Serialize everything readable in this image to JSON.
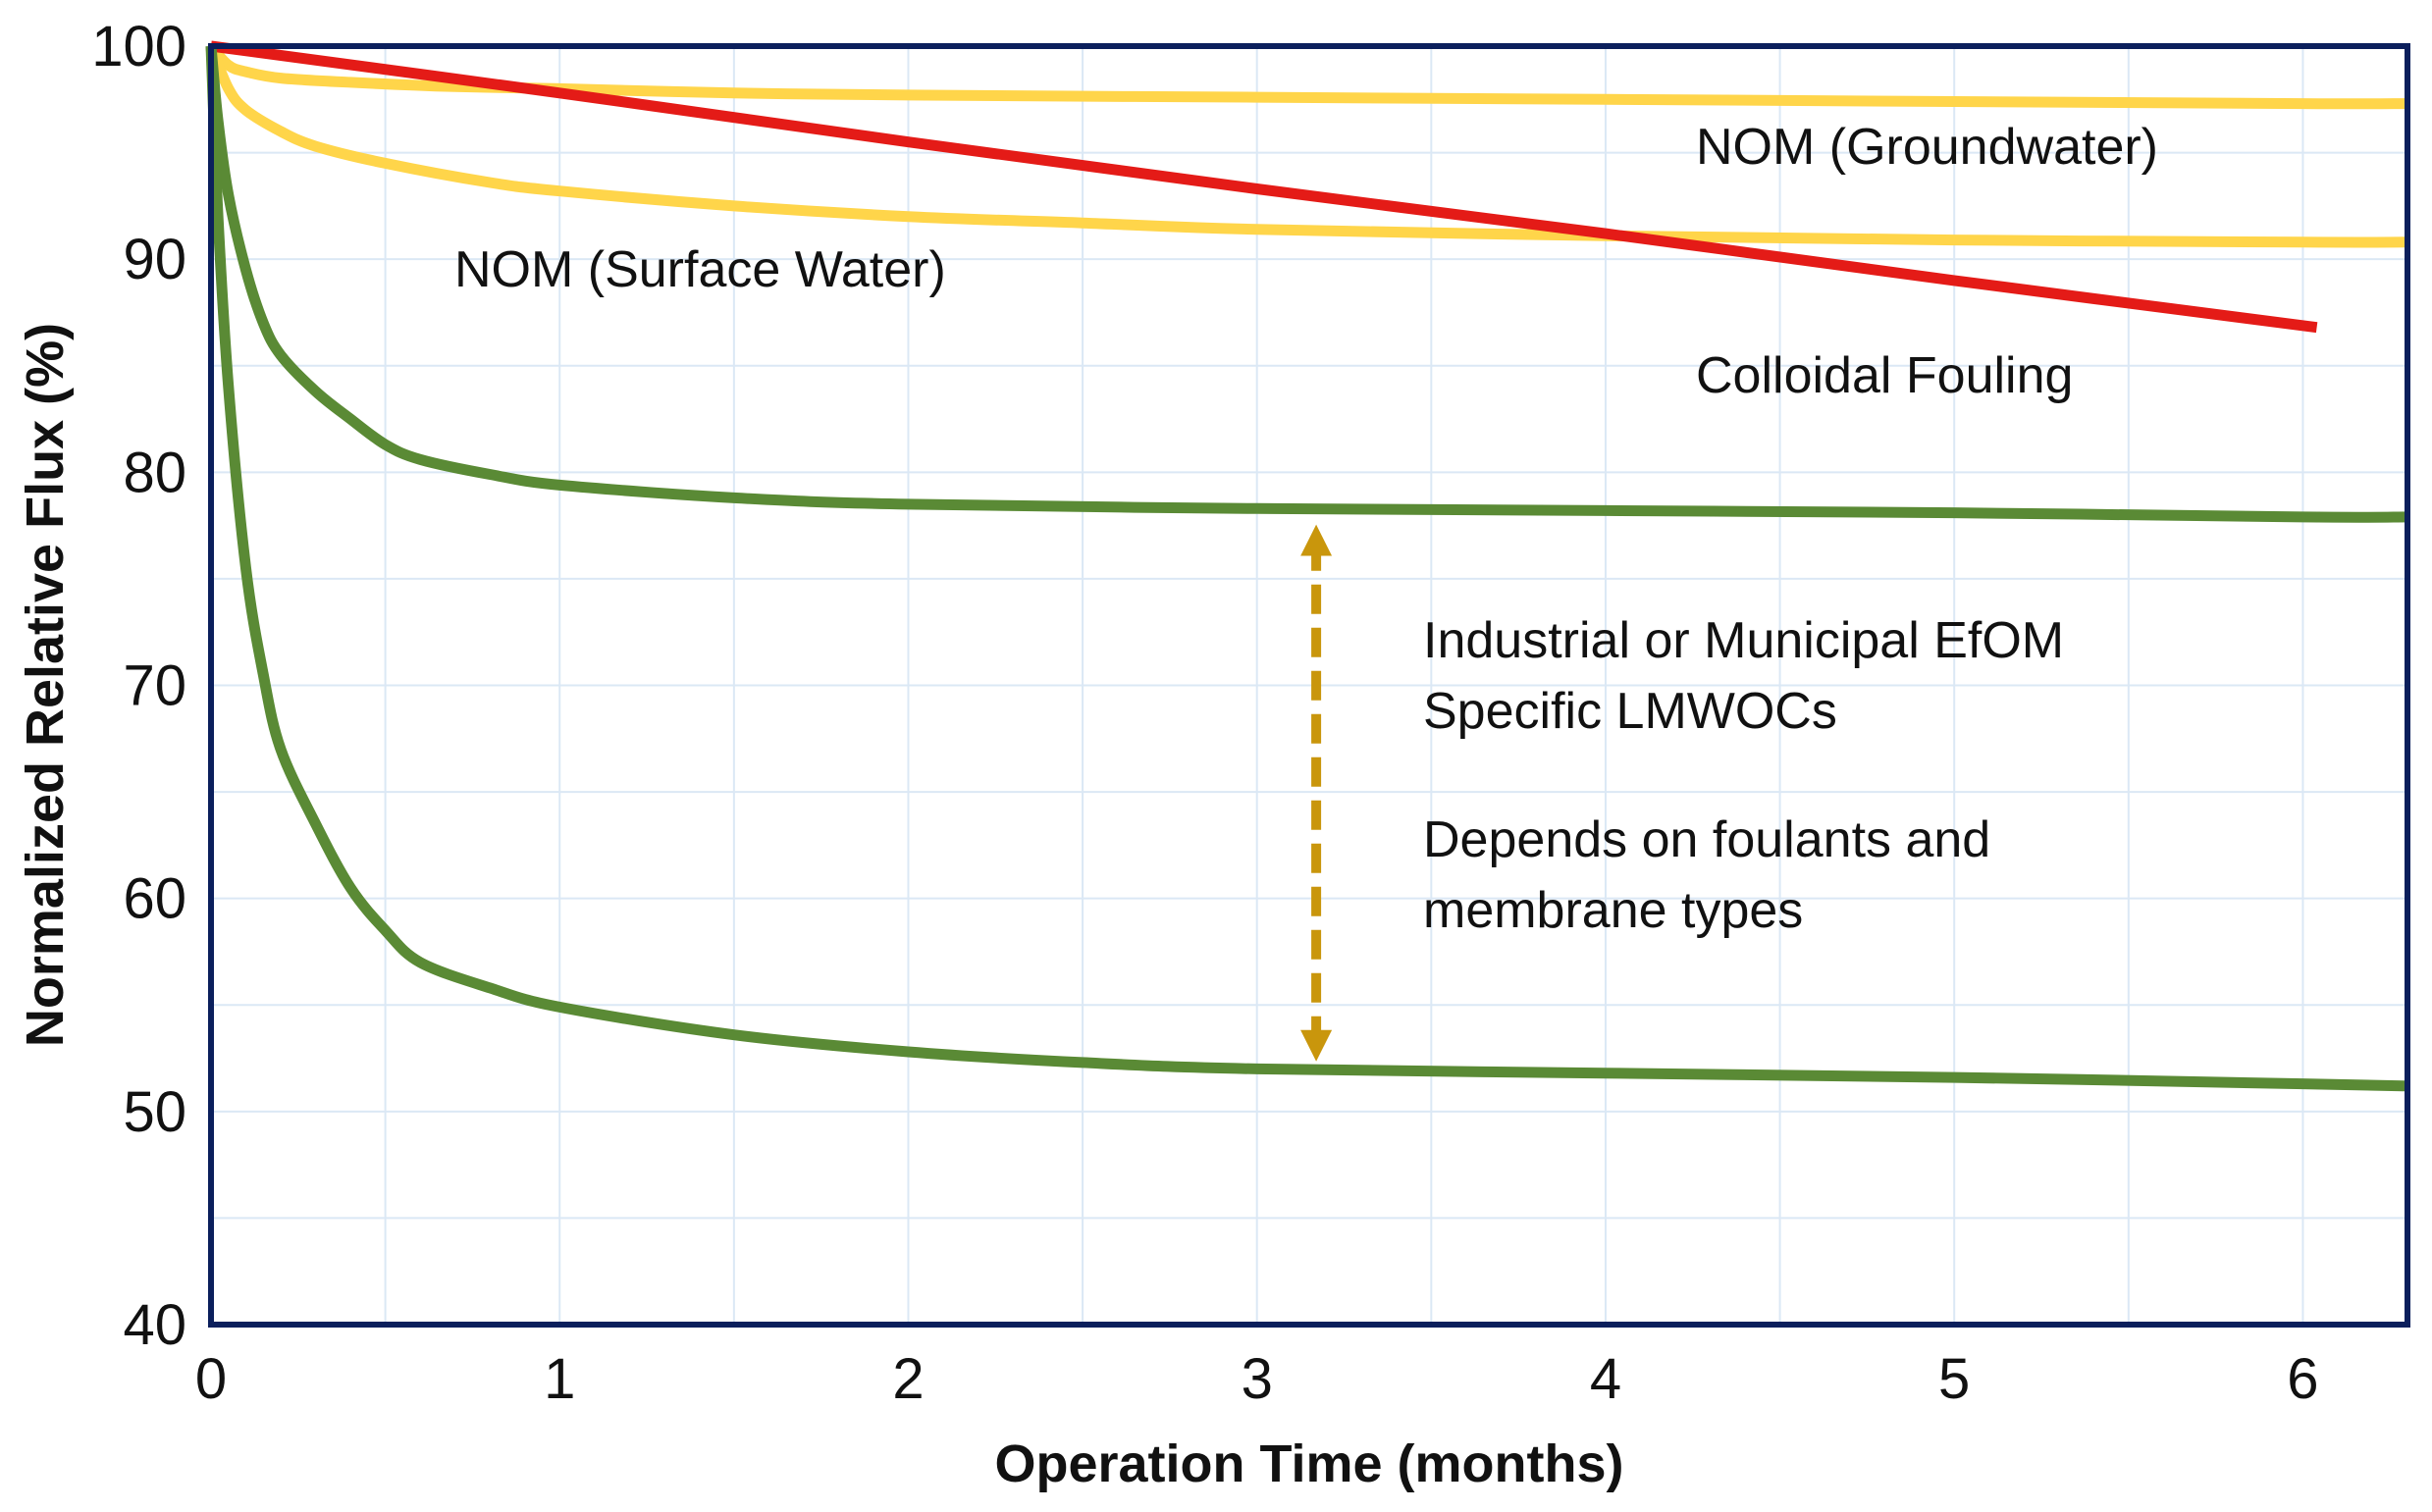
{
  "chart_data": {
    "type": "line",
    "title": "",
    "xlabel": "Operation Time (months)",
    "ylabel": "Normalized Relative Flux (%)",
    "xlim": [
      0,
      6.3
    ],
    "ylim": [
      40,
      100
    ],
    "x_ticks": [
      "0",
      "1",
      "2",
      "3",
      "4",
      "5",
      "6"
    ],
    "y_ticks": [
      "100",
      "90",
      "80",
      "70",
      "60",
      "50",
      "40"
    ],
    "grid": true,
    "colors": {
      "nom": "#ffd54a",
      "colloidal": "#e41b17",
      "industrial": "#5a8a35",
      "arrow": "#c9960c",
      "frame": "#0b1f5c",
      "grid": "#dbe8f5"
    },
    "series": [
      {
        "name": "NOM (Groundwater)",
        "color_key": "nom",
        "x": [
          0,
          0.05,
          0.1,
          0.2,
          0.4,
          0.7,
          1.0,
          1.5,
          2.0,
          3.0,
          4.0,
          5.0,
          6.0,
          6.3
        ],
        "y": [
          100,
          99.1,
          98.8,
          98.5,
          98.3,
          98.1,
          98.0,
          97.8,
          97.7,
          97.6,
          97.5,
          97.4,
          97.3,
          97.3
        ]
      },
      {
        "name": "NOM (Surface Water)",
        "color_key": "nom",
        "x": [
          0,
          0.05,
          0.1,
          0.2,
          0.3,
          0.5,
          0.8,
          1.0,
          1.5,
          2.0,
          2.5,
          3.0,
          4.0,
          5.0,
          6.0,
          6.3
        ],
        "y": [
          100,
          98.0,
          97.0,
          96.0,
          95.3,
          94.5,
          93.6,
          93.2,
          92.5,
          92.0,
          91.7,
          91.4,
          91.1,
          90.9,
          90.8,
          90.8
        ]
      },
      {
        "name": "Colloidal Fouling",
        "color_key": "colloidal",
        "x": [
          0,
          1,
          2,
          3,
          4,
          5,
          6.04
        ],
        "y": [
          100,
          97.8,
          95.5,
          93.3,
          91.2,
          89.0,
          86.8
        ]
      },
      {
        "name": "Industrial or Municipal EfOM upper",
        "color_key": "industrial",
        "x": [
          0,
          0.02,
          0.05,
          0.1,
          0.15,
          0.2,
          0.3,
          0.4,
          0.5,
          0.6,
          0.8,
          1.0,
          1.5,
          2.0,
          3.0,
          4.0,
          5.0,
          6.0,
          6.3
        ],
        "y": [
          100,
          96.5,
          93.0,
          89.5,
          87.0,
          85.5,
          83.8,
          82.5,
          81.3,
          80.6,
          79.9,
          79.4,
          78.8,
          78.5,
          78.3,
          78.2,
          78.1,
          77.9,
          77.9
        ]
      },
      {
        "name": "Industrial or Municipal EfOM lower",
        "color_key": "industrial",
        "x": [
          0,
          0.02,
          0.05,
          0.1,
          0.15,
          0.2,
          0.3,
          0.4,
          0.5,
          0.6,
          0.8,
          1.0,
          1.5,
          2.0,
          2.5,
          3.0,
          4.0,
          5.0,
          6.0,
          6.3
        ],
        "y": [
          100,
          92.0,
          84.0,
          75.5,
          70.5,
          67.0,
          63.5,
          60.5,
          58.5,
          57.0,
          55.8,
          54.9,
          53.6,
          52.8,
          52.3,
          52.0,
          51.8,
          51.6,
          51.3,
          51.2
        ]
      }
    ],
    "arrow": {
      "x": 3.17,
      "y_from": 51.8,
      "y_to": 78.1
    },
    "annotations": {
      "groundwater": "NOM (Groundwater)",
      "surface_water": "NOM (Surface Water)",
      "colloidal": "Colloidal Fouling",
      "industrial_1": "Industrial or Municipal EfOM",
      "industrial_2": "Specific LMWOCs",
      "depends_1": "Depends on foulants  and",
      "depends_2": "membrane types"
    }
  }
}
